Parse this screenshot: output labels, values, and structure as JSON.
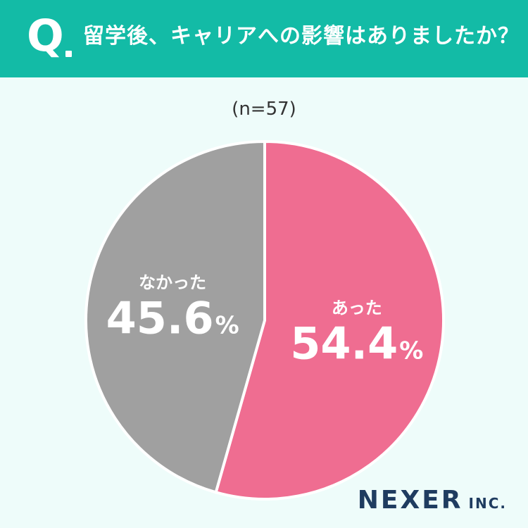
{
  "header": {
    "q_mark": "Q",
    "question": "留学後、キャリアへの影響はありましたか？"
  },
  "sample_size": "(n=57)",
  "chart_data": {
    "type": "pie",
    "title": "留学後、キャリアへの影響はありましたか？",
    "slices": [
      {
        "label": "あった",
        "value": 54.4,
        "display": "54.4",
        "unit": "%",
        "color": "#ef6d91"
      },
      {
        "label": "なかった",
        "value": 45.6,
        "display": "45.6",
        "unit": "%",
        "color": "#a0a0a0"
      }
    ],
    "start": "12 o'clock",
    "direction": "clockwise"
  },
  "logo": {
    "main": "NEXER",
    "sub": "INC."
  },
  "colors": {
    "header": "#13bba6",
    "background": "#eefcfa",
    "logo": "#1f3c60"
  }
}
